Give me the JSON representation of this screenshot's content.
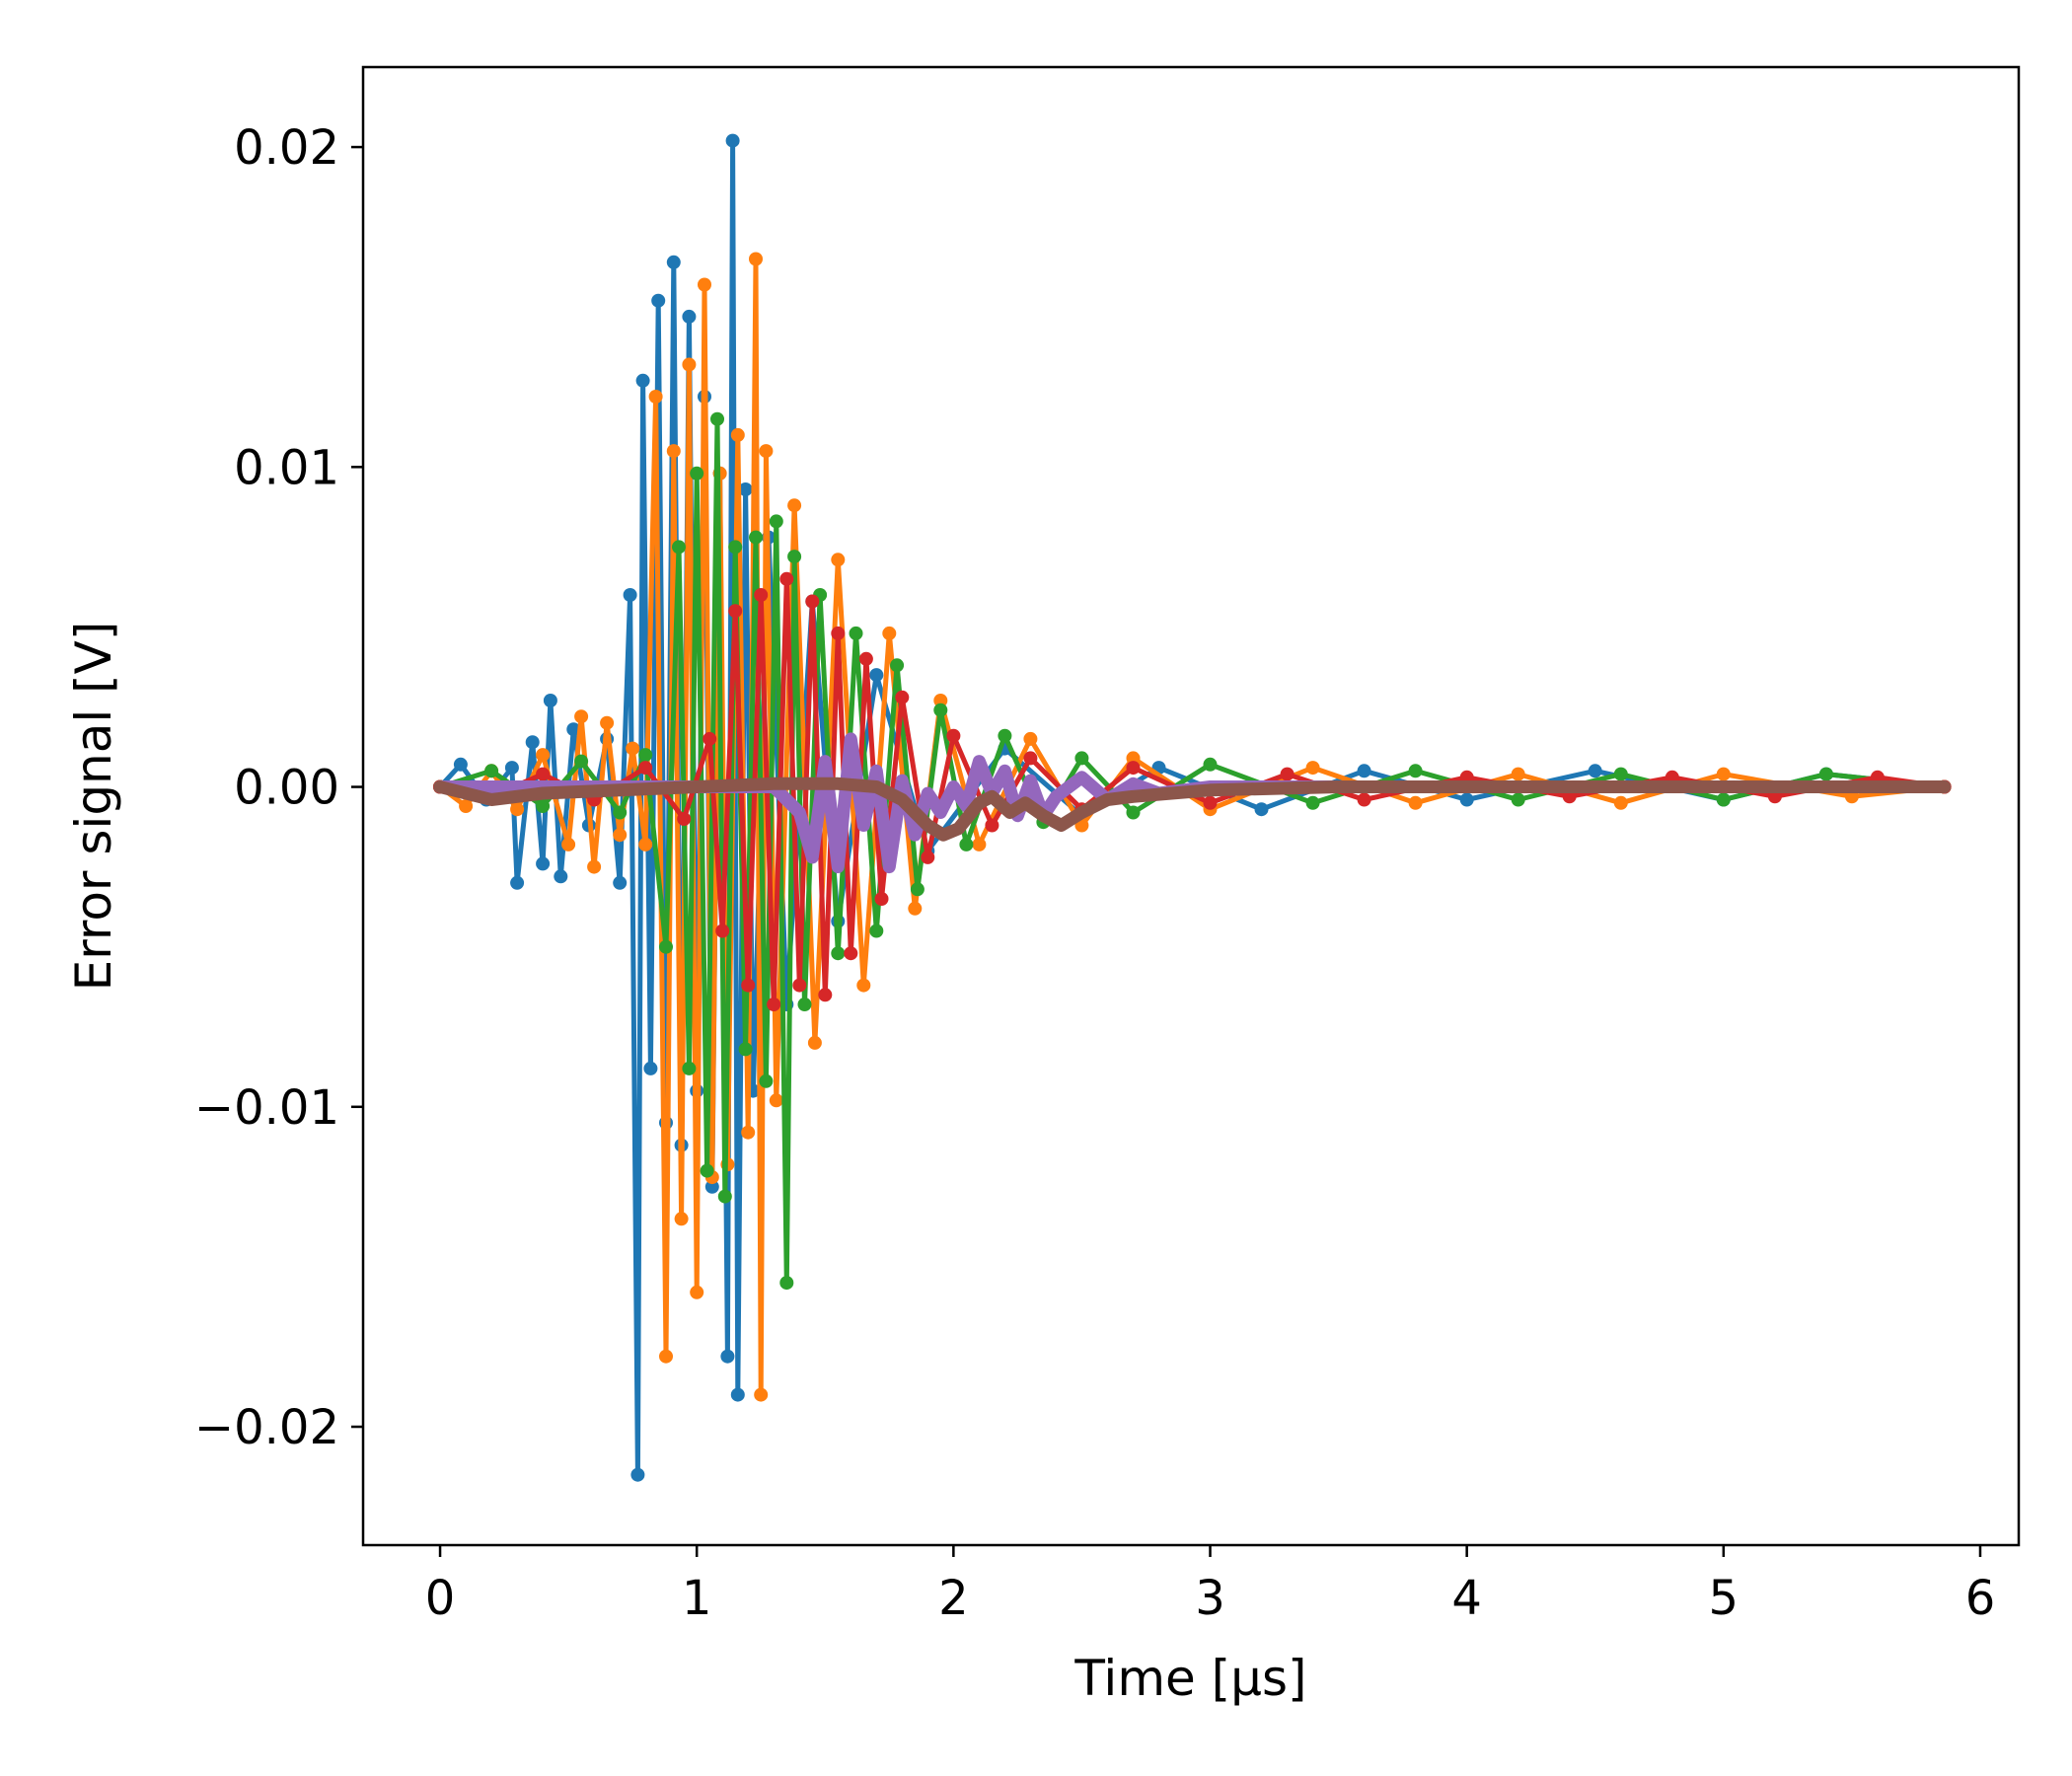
{
  "chart_data": {
    "type": "line",
    "title": "",
    "xlabel": "Time [μs]",
    "ylabel": "Error signal [V]",
    "xlim": [
      -0.3,
      6.15
    ],
    "ylim": [
      -0.0237,
      0.0225
    ],
    "xticks": [
      0,
      1,
      2,
      3,
      4,
      5,
      6
    ],
    "xtick_labels": [
      "0",
      "1",
      "2",
      "3",
      "4",
      "5",
      "6"
    ],
    "yticks": [
      -0.02,
      -0.01,
      0.0,
      0.01,
      0.02
    ],
    "ytick_labels": [
      "−0.02",
      "−0.01",
      "0.00",
      "0.01",
      "0.02"
    ],
    "grid": false,
    "legend": "none",
    "series": [
      {
        "color": "#1f77b4",
        "marker": "dot",
        "x": [
          0.0,
          0.08,
          0.18,
          0.28,
          0.3,
          0.36,
          0.4,
          0.43,
          0.47,
          0.52,
          0.58,
          0.65,
          0.7,
          0.74,
          0.77,
          0.79,
          0.82,
          0.85,
          0.88,
          0.91,
          0.94,
          0.97,
          1.0,
          1.03,
          1.06,
          1.09,
          1.12,
          1.14,
          1.16,
          1.19,
          1.22,
          1.28,
          1.35,
          1.45,
          1.55,
          1.7,
          1.9,
          2.2,
          2.5,
          2.8,
          3.2,
          3.6,
          4.0,
          4.5,
          5.0,
          5.4,
          5.86
        ],
        "y": [
          0.0,
          0.0007,
          -0.0004,
          0.0006,
          -0.003,
          0.0014,
          -0.0024,
          0.0027,
          -0.0028,
          0.0018,
          -0.0012,
          0.0015,
          -0.003,
          0.006,
          -0.0215,
          0.0127,
          -0.0088,
          0.0152,
          -0.0105,
          0.0164,
          -0.0112,
          0.0147,
          -0.0095,
          0.0122,
          -0.0125,
          0.0098,
          -0.0178,
          0.0202,
          -0.019,
          0.0093,
          -0.0095,
          0.0078,
          -0.0068,
          0.0058,
          -0.0042,
          0.0035,
          -0.002,
          0.0012,
          -0.0009,
          0.0006,
          -0.0007,
          0.0005,
          -0.0004,
          0.0005,
          -0.0004,
          0.0004,
          0.0
        ]
      },
      {
        "color": "#ff7f0e",
        "marker": "dot",
        "x": [
          0.0,
          0.1,
          0.2,
          0.3,
          0.4,
          0.5,
          0.55,
          0.6,
          0.65,
          0.7,
          0.75,
          0.8,
          0.84,
          0.88,
          0.91,
          0.94,
          0.97,
          1.0,
          1.03,
          1.06,
          1.09,
          1.12,
          1.16,
          1.2,
          1.23,
          1.25,
          1.27,
          1.31,
          1.38,
          1.46,
          1.55,
          1.65,
          1.75,
          1.85,
          1.95,
          2.1,
          2.3,
          2.5,
          2.7,
          3.0,
          3.4,
          3.8,
          4.2,
          4.6,
          5.0,
          5.5,
          5.86
        ],
        "y": [
          0.0,
          -0.0006,
          0.0005,
          -0.0007,
          0.001,
          -0.0018,
          0.0022,
          -0.0025,
          0.002,
          -0.0015,
          0.0012,
          -0.0018,
          0.0122,
          -0.0178,
          0.0105,
          -0.0135,
          0.0132,
          -0.0158,
          0.0157,
          -0.0122,
          0.0098,
          -0.0118,
          0.011,
          -0.0108,
          0.0165,
          -0.019,
          0.0105,
          -0.0098,
          0.0088,
          -0.008,
          0.0071,
          -0.0062,
          0.0048,
          -0.0038,
          0.0027,
          -0.0018,
          0.0015,
          -0.0012,
          0.0009,
          -0.0007,
          0.0006,
          -0.0005,
          0.0004,
          -0.0005,
          0.0004,
          -0.0003,
          0.0
        ]
      },
      {
        "color": "#2ca02c",
        "marker": "dot",
        "x": [
          0.0,
          0.2,
          0.4,
          0.55,
          0.7,
          0.8,
          0.88,
          0.93,
          0.97,
          1.0,
          1.04,
          1.08,
          1.11,
          1.15,
          1.19,
          1.23,
          1.27,
          1.31,
          1.35,
          1.38,
          1.42,
          1.48,
          1.55,
          1.62,
          1.7,
          1.78,
          1.86,
          1.95,
          2.05,
          2.2,
          2.35,
          2.5,
          2.7,
          3.0,
          3.4,
          3.8,
          4.2,
          4.6,
          5.0,
          5.4,
          5.86
        ],
        "y": [
          0.0,
          0.0005,
          -0.0006,
          0.0008,
          -0.0008,
          0.001,
          -0.005,
          0.0075,
          -0.0088,
          0.0098,
          -0.012,
          0.0115,
          -0.0128,
          0.0075,
          -0.0082,
          0.0078,
          -0.0092,
          0.0083,
          -0.0155,
          0.0072,
          -0.0068,
          0.006,
          -0.0052,
          0.0048,
          -0.0045,
          0.0038,
          -0.0032,
          0.0024,
          -0.0018,
          0.0016,
          -0.0011,
          0.0009,
          -0.0008,
          0.0007,
          -0.0005,
          0.0005,
          -0.0004,
          0.0004,
          -0.0004,
          0.0004,
          0.0
        ]
      },
      {
        "color": "#d62728",
        "marker": "dot",
        "x": [
          0.0,
          0.2,
          0.4,
          0.6,
          0.8,
          0.95,
          1.05,
          1.1,
          1.15,
          1.2,
          1.25,
          1.3,
          1.35,
          1.4,
          1.45,
          1.5,
          1.55,
          1.6,
          1.66,
          1.72,
          1.8,
          1.9,
          2.0,
          2.15,
          2.3,
          2.5,
          2.7,
          3.0,
          3.3,
          3.6,
          4.0,
          4.4,
          4.8,
          5.2,
          5.6,
          5.86
        ],
        "y": [
          0.0,
          -0.0003,
          0.0004,
          -0.0004,
          0.0006,
          -0.001,
          0.0015,
          -0.0045,
          0.0055,
          -0.0062,
          0.006,
          -0.0068,
          0.0065,
          -0.0062,
          0.0058,
          -0.0065,
          0.0048,
          -0.0052,
          0.004,
          -0.0035,
          0.0028,
          -0.0022,
          0.0016,
          -0.0012,
          0.0009,
          -0.0007,
          0.0006,
          -0.0005,
          0.0004,
          -0.0004,
          0.0003,
          -0.0003,
          0.0003,
          -0.0003,
          0.0003,
          0.0
        ]
      },
      {
        "color": "#9467bd",
        "marker": "none",
        "x": [
          0.0,
          0.5,
          1.0,
          1.3,
          1.4,
          1.45,
          1.5,
          1.55,
          1.6,
          1.65,
          1.7,
          1.75,
          1.8,
          1.85,
          1.9,
          1.95,
          2.0,
          2.05,
          2.1,
          2.15,
          2.2,
          2.25,
          2.3,
          2.35,
          2.4,
          2.5,
          2.6,
          2.7,
          2.8,
          3.0,
          3.5,
          4.0,
          5.0,
          5.86
        ],
        "y": [
          0.0,
          0.0,
          0.0,
          0.0,
          -0.0008,
          -0.0022,
          0.0008,
          -0.0025,
          0.0015,
          -0.0012,
          0.0005,
          -0.0025,
          0.0002,
          -0.0015,
          -0.0002,
          -0.0008,
          0.0,
          -0.0006,
          0.0008,
          -0.0002,
          0.0005,
          -0.0009,
          0.0002,
          -0.0009,
          -0.0003,
          0.0003,
          -0.0004,
          0.0001,
          -0.0002,
          0.0,
          0.0,
          0.0,
          0.0,
          0.0
        ]
      },
      {
        "color": "#8c564b",
        "marker": "none",
        "x": [
          0.0,
          0.2,
          0.4,
          0.7,
          1.0,
          1.3,
          1.55,
          1.7,
          1.8,
          1.9,
          1.96,
          2.02,
          2.1,
          2.15,
          2.22,
          2.28,
          2.35,
          2.42,
          2.5,
          2.6,
          2.7,
          2.85,
          3.0,
          3.5,
          4.0,
          4.5,
          5.0,
          5.5,
          5.86
        ],
        "y": [
          0.0,
          -0.0004,
          -0.0002,
          -0.0001,
          0.0,
          0.0001,
          0.0001,
          0.0,
          -0.0004,
          -0.0012,
          -0.0015,
          -0.0013,
          -0.0005,
          -0.0003,
          -0.0008,
          -0.0005,
          -0.0009,
          -0.0012,
          -0.0008,
          -0.0004,
          -0.0003,
          -0.0002,
          -0.0001,
          0.0,
          0.0,
          0.0,
          0.0,
          0.0,
          0.0
        ]
      }
    ]
  }
}
